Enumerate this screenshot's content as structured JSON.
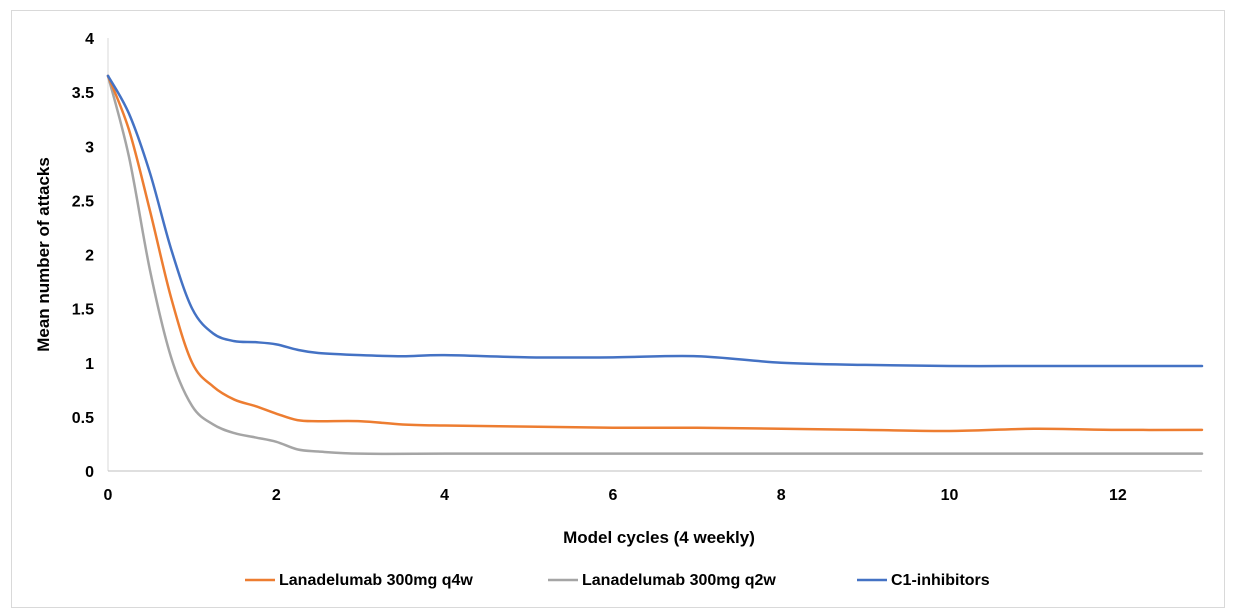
{
  "chart_data": {
    "type": "line",
    "title": "",
    "xlabel": "Model cycles (4 weekly)",
    "ylabel": "Mean number of attacks",
    "xlim": [
      0,
      13
    ],
    "ylim": [
      0,
      4
    ],
    "x_ticks": [
      "0",
      "2",
      "4",
      "6",
      "8",
      "10",
      "12"
    ],
    "y_ticks": [
      "0",
      "0.5",
      "1",
      "1.5",
      "2",
      "2.5",
      "3",
      "3.5",
      "4"
    ],
    "grid": false,
    "legend_position": "bottom",
    "series": [
      {
        "name": "Lanadelumab 300mg q4w",
        "color": "#ED7D31",
        "points": [
          [
            0,
            3.65
          ],
          [
            0.25,
            3.15
          ],
          [
            0.5,
            2.4
          ],
          [
            0.75,
            1.6
          ],
          [
            1,
            1.0
          ],
          [
            1.25,
            0.78
          ],
          [
            1.5,
            0.66
          ],
          [
            1.75,
            0.6
          ],
          [
            2,
            0.53
          ],
          [
            2.25,
            0.47
          ],
          [
            2.5,
            0.46
          ],
          [
            3,
            0.46
          ],
          [
            3.5,
            0.43
          ],
          [
            4,
            0.42
          ],
          [
            5,
            0.41
          ],
          [
            6,
            0.4
          ],
          [
            7,
            0.4
          ],
          [
            8,
            0.39
          ],
          [
            9,
            0.38
          ],
          [
            10,
            0.37
          ],
          [
            11,
            0.39
          ],
          [
            12,
            0.38
          ],
          [
            13,
            0.38
          ]
        ]
      },
      {
        "name": "Lanadelumab 300mg q2w",
        "color": "#A5A5A5",
        "points": [
          [
            0,
            3.65
          ],
          [
            0.25,
            2.9
          ],
          [
            0.5,
            1.85
          ],
          [
            0.75,
            1.05
          ],
          [
            1,
            0.6
          ],
          [
            1.25,
            0.43
          ],
          [
            1.5,
            0.35
          ],
          [
            1.75,
            0.31
          ],
          [
            2,
            0.27
          ],
          [
            2.25,
            0.2
          ],
          [
            2.5,
            0.18
          ],
          [
            3,
            0.16
          ],
          [
            4,
            0.16
          ],
          [
            5,
            0.16
          ],
          [
            6,
            0.16
          ],
          [
            7,
            0.16
          ],
          [
            8,
            0.16
          ],
          [
            9,
            0.16
          ],
          [
            10,
            0.16
          ],
          [
            11,
            0.16
          ],
          [
            12,
            0.16
          ],
          [
            13,
            0.16
          ]
        ]
      },
      {
        "name": "C1-inhibitors",
        "color": "#4472C4",
        "points": [
          [
            0,
            3.65
          ],
          [
            0.25,
            3.3
          ],
          [
            0.5,
            2.75
          ],
          [
            0.75,
            2.05
          ],
          [
            1,
            1.5
          ],
          [
            1.25,
            1.27
          ],
          [
            1.5,
            1.2
          ],
          [
            1.75,
            1.19
          ],
          [
            2,
            1.17
          ],
          [
            2.25,
            1.12
          ],
          [
            2.5,
            1.09
          ],
          [
            3,
            1.07
          ],
          [
            3.5,
            1.06
          ],
          [
            4,
            1.07
          ],
          [
            5,
            1.05
          ],
          [
            6,
            1.05
          ],
          [
            7,
            1.06
          ],
          [
            8,
            1.0
          ],
          [
            9,
            0.98
          ],
          [
            10,
            0.97
          ],
          [
            11,
            0.97
          ],
          [
            12,
            0.97
          ],
          [
            13,
            0.97
          ]
        ]
      }
    ]
  }
}
